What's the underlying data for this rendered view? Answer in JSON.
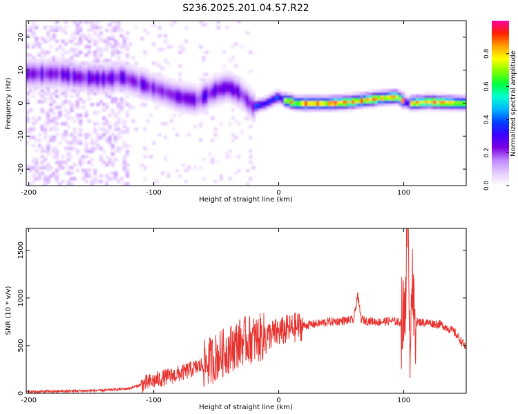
{
  "title": "S236.2025.201.04.57.R22",
  "chart_data": [
    {
      "type": "heatmap",
      "xlabel": "Height of straight line (km)",
      "ylabel": "Frequency (Hz)",
      "xlim": [
        -202,
        150
      ],
      "ylim": [
        -25,
        25
      ],
      "xticks": [
        -200,
        -100,
        0,
        100
      ],
      "yticks": [
        -20,
        -10,
        0,
        10,
        20
      ],
      "grid": false,
      "colorbar": {
        "label": "Normalized spectral amplitude",
        "range": [
          0,
          1
        ],
        "ticks": [
          "0.0",
          "0.2",
          "0.4",
          "0.6",
          "0.8"
        ],
        "colors": [
          "#ffffff",
          "#e6ccff",
          "#c088ff",
          "#7b00e0",
          "#3a00ff",
          "#0040ff",
          "#00b4ff",
          "#00ffd0",
          "#00ff40",
          "#80ff00",
          "#ffff00",
          "#ffa000",
          "#ff2000",
          "#ff00a0"
        ]
      },
      "ridge": [
        {
          "x": -175,
          "y": 9
        },
        {
          "x": -160,
          "y": 8
        },
        {
          "x": -140,
          "y": 7.5
        },
        {
          "x": -125,
          "y": 8
        },
        {
          "x": -110,
          "y": 6
        },
        {
          "x": -95,
          "y": 4
        },
        {
          "x": -80,
          "y": 2
        },
        {
          "x": -65,
          "y": 1
        },
        {
          "x": -50,
          "y": 4
        },
        {
          "x": -40,
          "y": 5
        },
        {
          "x": -30,
          "y": 3
        },
        {
          "x": -20,
          "y": -1
        },
        {
          "x": -10,
          "y": 0
        },
        {
          "x": 0,
          "y": 2
        },
        {
          "x": 5,
          "y": 1
        },
        {
          "x": 15,
          "y": 0
        },
        {
          "x": 40,
          "y": 0
        },
        {
          "x": 60,
          "y": 0.5
        },
        {
          "x": 80,
          "y": 1.5
        },
        {
          "x": 95,
          "y": 2
        },
        {
          "x": 103,
          "y": 0
        },
        {
          "x": 120,
          "y": 0.5
        },
        {
          "x": 150,
          "y": 0
        }
      ]
    },
    {
      "type": "line",
      "xlabel": "Height of straight line (km)",
      "ylabel": "SNR (10 * v/v)",
      "xlim": [
        -202,
        150
      ],
      "ylim": [
        0,
        1730
      ],
      "xticks": [
        -200,
        -100,
        0,
        100
      ],
      "yticks": [
        0,
        500,
        1000,
        1500
      ],
      "grid": false,
      "color": "#e8322e",
      "series": [
        {
          "x": [
            -202,
            -180,
            -160,
            -140,
            -120,
            -110,
            -100,
            -90,
            -80,
            -70,
            -60,
            -50,
            -40,
            -35,
            -30,
            -25,
            -20,
            -15,
            -10,
            -5,
            0,
            10,
            20,
            30,
            40,
            50,
            60,
            63,
            66,
            70,
            80,
            90,
            100,
            103,
            104,
            105,
            106,
            108,
            110,
            120,
            130,
            140,
            150
          ],
          "values": [
            15,
            20,
            25,
            30,
            50,
            90,
            130,
            170,
            200,
            250,
            300,
            380,
            460,
            500,
            540,
            560,
            560,
            580,
            600,
            620,
            640,
            680,
            710,
            730,
            750,
            760,
            770,
            1030,
            780,
            760,
            750,
            760,
            740,
            1600,
            1750,
            300,
            1300,
            760,
            750,
            740,
            720,
            650,
            480
          ]
        }
      ]
    }
  ]
}
